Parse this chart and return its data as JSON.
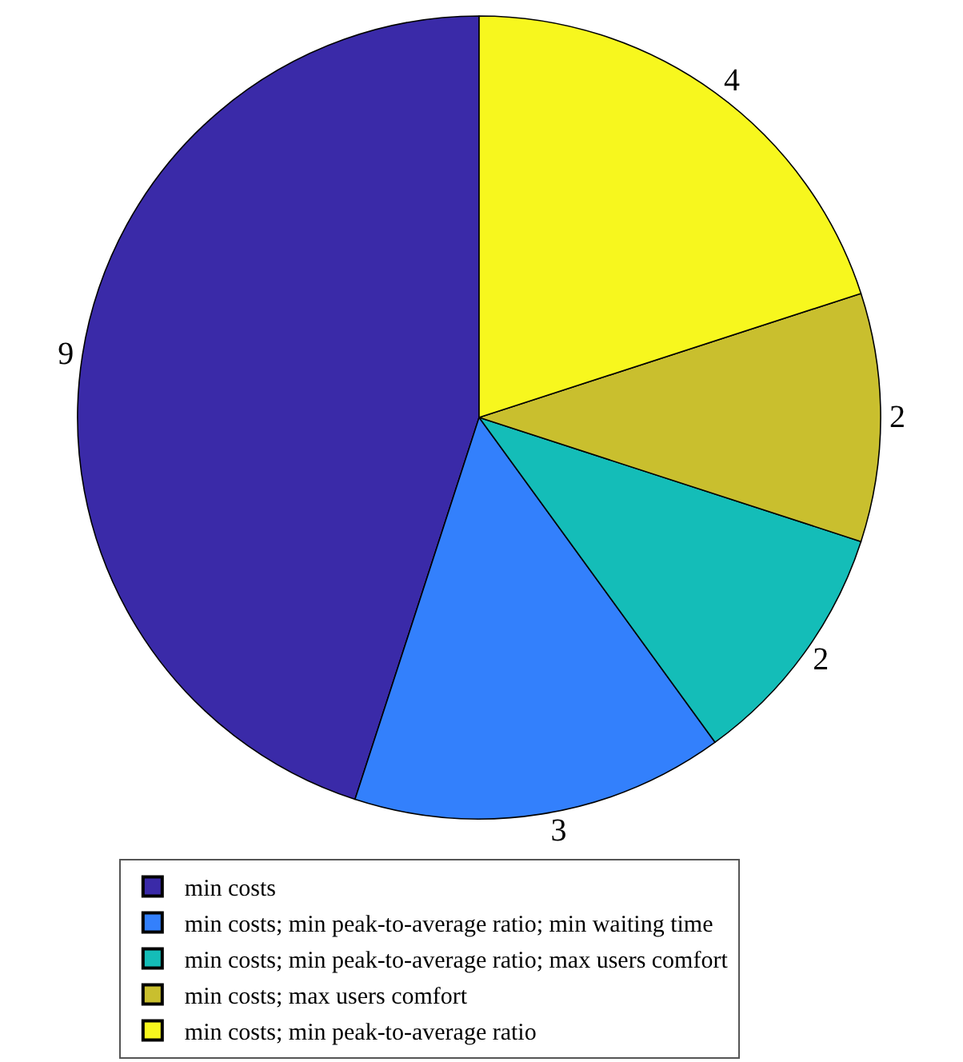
{
  "chart_data": {
    "type": "pie",
    "categories": [
      "min costs",
      "min costs; min peak-to-average ratio; min waiting time",
      "min costs; min peak-to-average ratio; max users comfort",
      "min costs; max users comfort",
      "min costs; min peak-to-average ratio"
    ],
    "values": [
      9,
      3,
      2,
      2,
      4
    ],
    "colors": [
      "#3a2aa8",
      "#3380fc",
      "#14bdb8",
      "#c9bf2e",
      "#f7f71e"
    ],
    "data_labels": true,
    "legend": "bottom"
  }
}
